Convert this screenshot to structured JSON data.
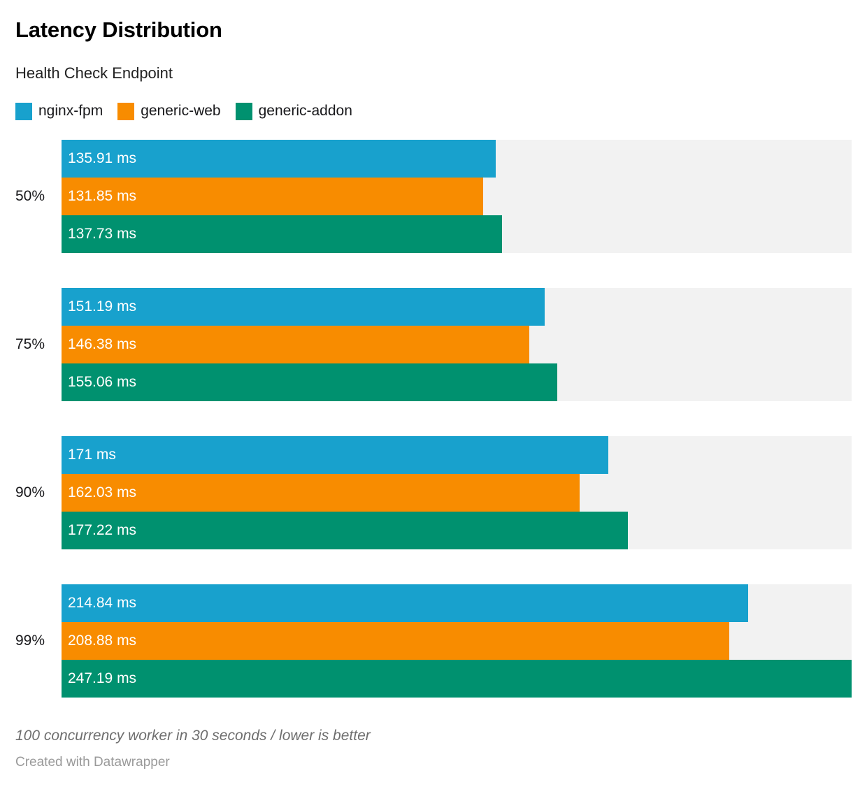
{
  "chart_data": {
    "type": "bar",
    "orientation": "horizontal",
    "title": "Latency Distribution",
    "subtitle": "Health Check Endpoint",
    "categories": [
      "50%",
      "75%",
      "90%",
      "99%"
    ],
    "series": [
      {
        "name": "nginx-fpm",
        "color": "#18a1cd",
        "values": [
          135.91,
          151.19,
          171,
          214.84
        ],
        "labels": [
          "135.91 ms",
          "151.19 ms",
          "171 ms",
          "214.84 ms"
        ]
      },
      {
        "name": "generic-web",
        "color": "#f88c00",
        "values": [
          131.85,
          146.38,
          162.03,
          208.88
        ],
        "labels": [
          "131.85 ms",
          "146.38 ms",
          "162.03 ms",
          "208.88 ms"
        ]
      },
      {
        "name": "generic-addon",
        "color": "#00916f",
        "values": [
          137.73,
          155.06,
          177.22,
          247.19
        ],
        "labels": [
          "137.73 ms",
          "155.06 ms",
          "177.22 ms",
          "247.19 ms"
        ]
      }
    ],
    "xlim": [
      0,
      247.19
    ],
    "value_unit": "ms",
    "track_color": "#f2f2f2",
    "grid": false,
    "legend_position": "top"
  },
  "footer": {
    "note": "100 concurrency worker in 30 seconds / lower is better",
    "credit": "Created with Datawrapper"
  }
}
